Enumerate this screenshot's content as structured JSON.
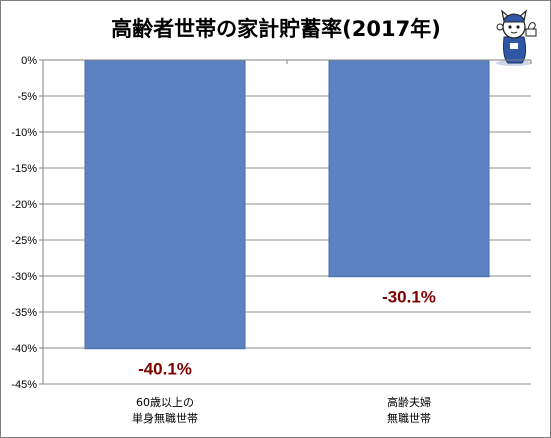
{
  "chart_data": {
    "type": "bar",
    "title": "高齢者世帯の家計貯蓄率(2017年)",
    "categories": [
      [
        "60歳以上の",
        "単身無職世帯"
      ],
      [
        "高齢夫婦",
        "無職世帯"
      ]
    ],
    "values": [
      -40.1,
      -30.1
    ],
    "data_labels": [
      "-40.1%",
      "-30.1%"
    ],
    "ylim": [
      -45,
      0
    ],
    "yticks": [
      0,
      -5,
      -10,
      -15,
      -20,
      -25,
      -30,
      -35,
      -40,
      -45
    ],
    "ytick_labels": [
      "0%",
      "-5%",
      "-10%",
      "-15%",
      "-20%",
      "-25%",
      "-30%",
      "-35%",
      "-40%",
      "-45%"
    ],
    "grid": true,
    "legend": "none",
    "colors": {
      "bar_fill": "#5b82c1",
      "bar_stroke": "#4a6fa8",
      "data_label": "#7f0000",
      "grid": "#8c8c8c",
      "axis": "#808080"
    }
  },
  "mascot_icon": "cat-mascot-icon"
}
